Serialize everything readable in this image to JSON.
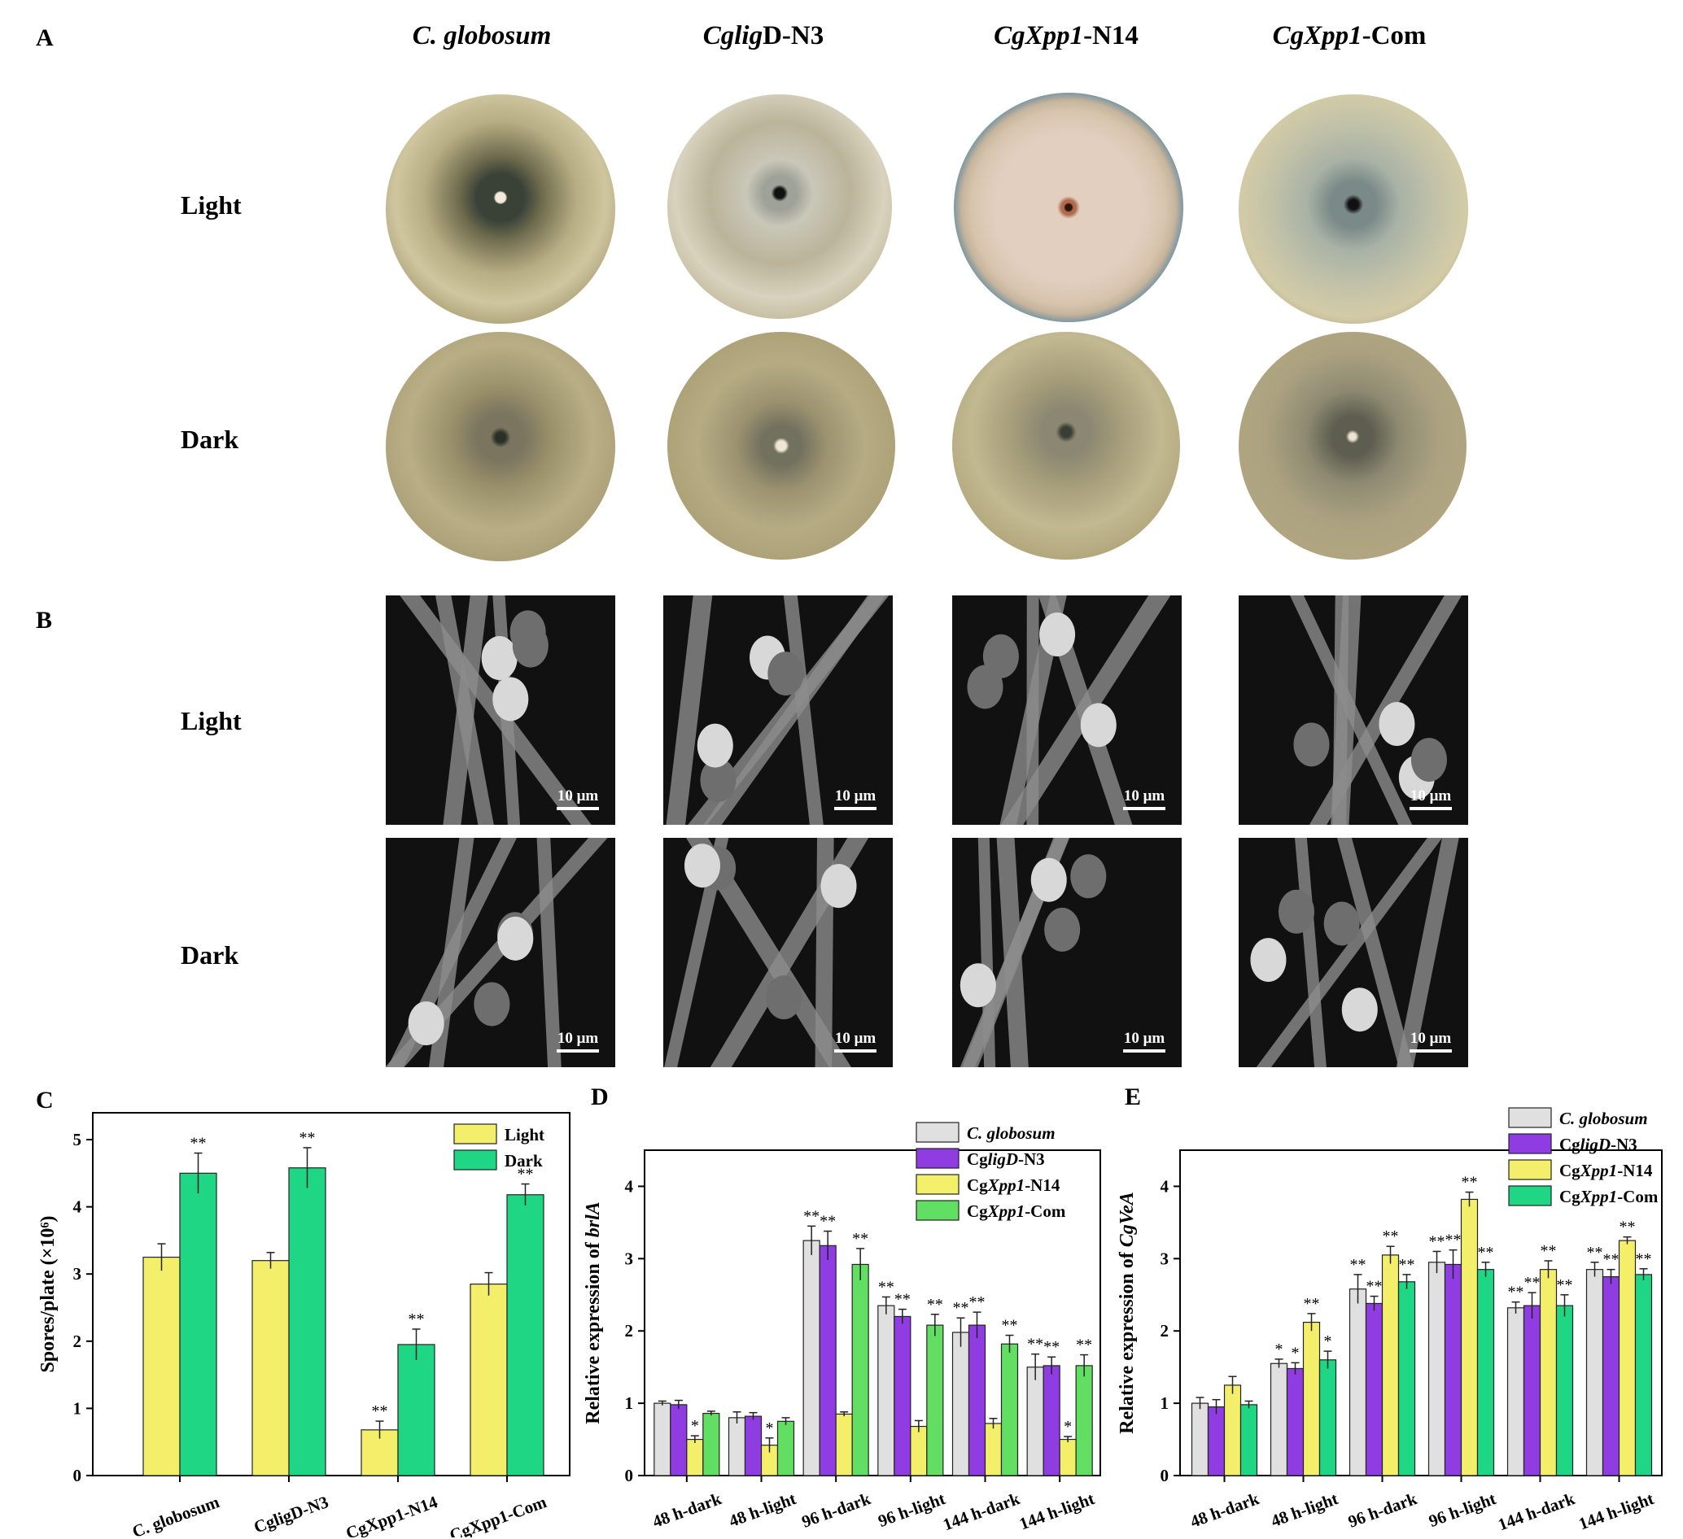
{
  "panels": {
    "A": {
      "letter": "A",
      "columns": [
        {
          "parts": [
            {
              "t": "C. globosum",
              "i": true
            }
          ]
        },
        {
          "parts": [
            {
              "t": "Cglig",
              "i": true
            },
            {
              "t": "D-N3",
              "i": false
            }
          ]
        },
        {
          "parts": [
            {
              "t": "CgXpp1",
              "i": true
            },
            {
              "t": "-N14",
              "i": false
            }
          ]
        },
        {
          "parts": [
            {
              "t": "CgXpp1",
              "i": true
            },
            {
              "t": "-Com",
              "i": false
            }
          ]
        }
      ],
      "rows": [
        "Light",
        "Dark"
      ]
    },
    "B": {
      "letter": "B",
      "rows": [
        "Light",
        "Dark"
      ],
      "scale_bar": "10 μm"
    }
  },
  "chart_data": [
    {
      "panel": "C",
      "type": "bar",
      "ylabel": "Spores/plate (×10⁶)",
      "ylim": [
        0,
        5.4
      ],
      "yticks": [
        0,
        1,
        2,
        3,
        4,
        5
      ],
      "categories": [
        "C. globosum",
        "CgligD-N3",
        "CgXpp1-N14",
        "CgXpp1-Com"
      ],
      "series": [
        {
          "name": "Light",
          "color": "#f3ef6b",
          "values": [
            3.25,
            3.2,
            0.68,
            2.85
          ],
          "errors": [
            0.2,
            0.12,
            0.13,
            0.17
          ],
          "sig": [
            "",
            "",
            "**",
            ""
          ]
        },
        {
          "name": "Dark",
          "color": "#1fd684",
          "values": [
            4.5,
            4.58,
            1.95,
            4.18
          ],
          "errors": [
            0.3,
            0.3,
            0.23,
            0.16
          ],
          "sig": [
            "**",
            "**",
            "**",
            "**"
          ]
        }
      ],
      "legend_position": "top-right"
    },
    {
      "panel": "D",
      "type": "bar",
      "ylabel": "Relative expression of brlA",
      "ylim": [
        0,
        4.5
      ],
      "yticks": [
        0,
        1,
        2,
        3,
        4
      ],
      "categories": [
        "48 h-dark",
        "48 h-light",
        "96 h-dark",
        "96 h-light",
        "144 h-dark",
        "144 h-light"
      ],
      "series": [
        {
          "name": "C. globosum",
          "color": "#e0e0e0",
          "values": [
            1.0,
            0.8,
            3.25,
            2.35,
            1.98,
            1.5
          ],
          "errors": [
            0.03,
            0.08,
            0.2,
            0.12,
            0.2,
            0.18
          ],
          "sig": [
            "",
            "",
            "**",
            "**",
            "**",
            "**"
          ]
        },
        {
          "name": "CgligD-N3",
          "color": "#8f3de2",
          "values": [
            0.98,
            0.82,
            3.18,
            2.2,
            2.08,
            1.52
          ],
          "errors": [
            0.06,
            0.05,
            0.2,
            0.1,
            0.18,
            0.12
          ],
          "sig": [
            "",
            "",
            "**",
            "**",
            "**",
            "**"
          ]
        },
        {
          "name": "CgXpp1-N14",
          "color": "#f3ef6b",
          "values": [
            0.5,
            0.42,
            0.85,
            0.68,
            0.72,
            0.5
          ],
          "errors": [
            0.05,
            0.1,
            0.03,
            0.08,
            0.07,
            0.04
          ],
          "sig": [
            "*",
            "*",
            "",
            "",
            "",
            "*"
          ]
        },
        {
          "name": "CgXpp1-Com",
          "color": "#62de62",
          "values": [
            0.86,
            0.75,
            2.92,
            2.08,
            1.82,
            1.52
          ],
          "errors": [
            0.03,
            0.05,
            0.22,
            0.15,
            0.12,
            0.15
          ],
          "sig": [
            "",
            "",
            "**",
            "**",
            "**",
            "**"
          ]
        }
      ],
      "legend_position": "top-right"
    },
    {
      "panel": "E",
      "type": "bar",
      "ylabel": "Relative expression of CgVeA",
      "ylim": [
        0,
        4.5
      ],
      "yticks": [
        0,
        1,
        2,
        3,
        4
      ],
      "categories": [
        "48 h-dark",
        "48 h-light",
        "96 h-dark",
        "96 h-light",
        "144 h-dark",
        "144 h-light"
      ],
      "series": [
        {
          "name": "C. globosum",
          "color": "#e0e0e0",
          "values": [
            1.0,
            1.55,
            2.58,
            2.95,
            2.32,
            2.85
          ],
          "errors": [
            0.08,
            0.06,
            0.2,
            0.15,
            0.08,
            0.1
          ],
          "sig": [
            "",
            "*",
            "**",
            "**",
            "**",
            "**"
          ]
        },
        {
          "name": "CgligD-N3",
          "color": "#8f3de2",
          "values": [
            0.95,
            1.48,
            2.38,
            2.92,
            2.35,
            2.75
          ],
          "errors": [
            0.1,
            0.08,
            0.1,
            0.2,
            0.18,
            0.1
          ],
          "sig": [
            "",
            "*",
            "**",
            "**",
            "**",
            "**"
          ]
        },
        {
          "name": "CgXpp1-N14",
          "color": "#f3ef6b",
          "values": [
            1.25,
            2.12,
            3.05,
            3.82,
            2.85,
            3.25
          ],
          "errors": [
            0.12,
            0.12,
            0.12,
            0.1,
            0.12,
            0.05
          ],
          "sig": [
            "",
            "**",
            "**",
            "**",
            "**",
            "**"
          ]
        },
        {
          "name": "CgXpp1-Com",
          "color": "#1fd684",
          "values": [
            0.98,
            1.6,
            2.68,
            2.85,
            2.35,
            2.78
          ],
          "errors": [
            0.05,
            0.12,
            0.1,
            0.1,
            0.15,
            0.08
          ],
          "sig": [
            "",
            "*",
            "**",
            "**",
            "**",
            "**"
          ]
        }
      ],
      "legend_position": "top-left"
    }
  ]
}
